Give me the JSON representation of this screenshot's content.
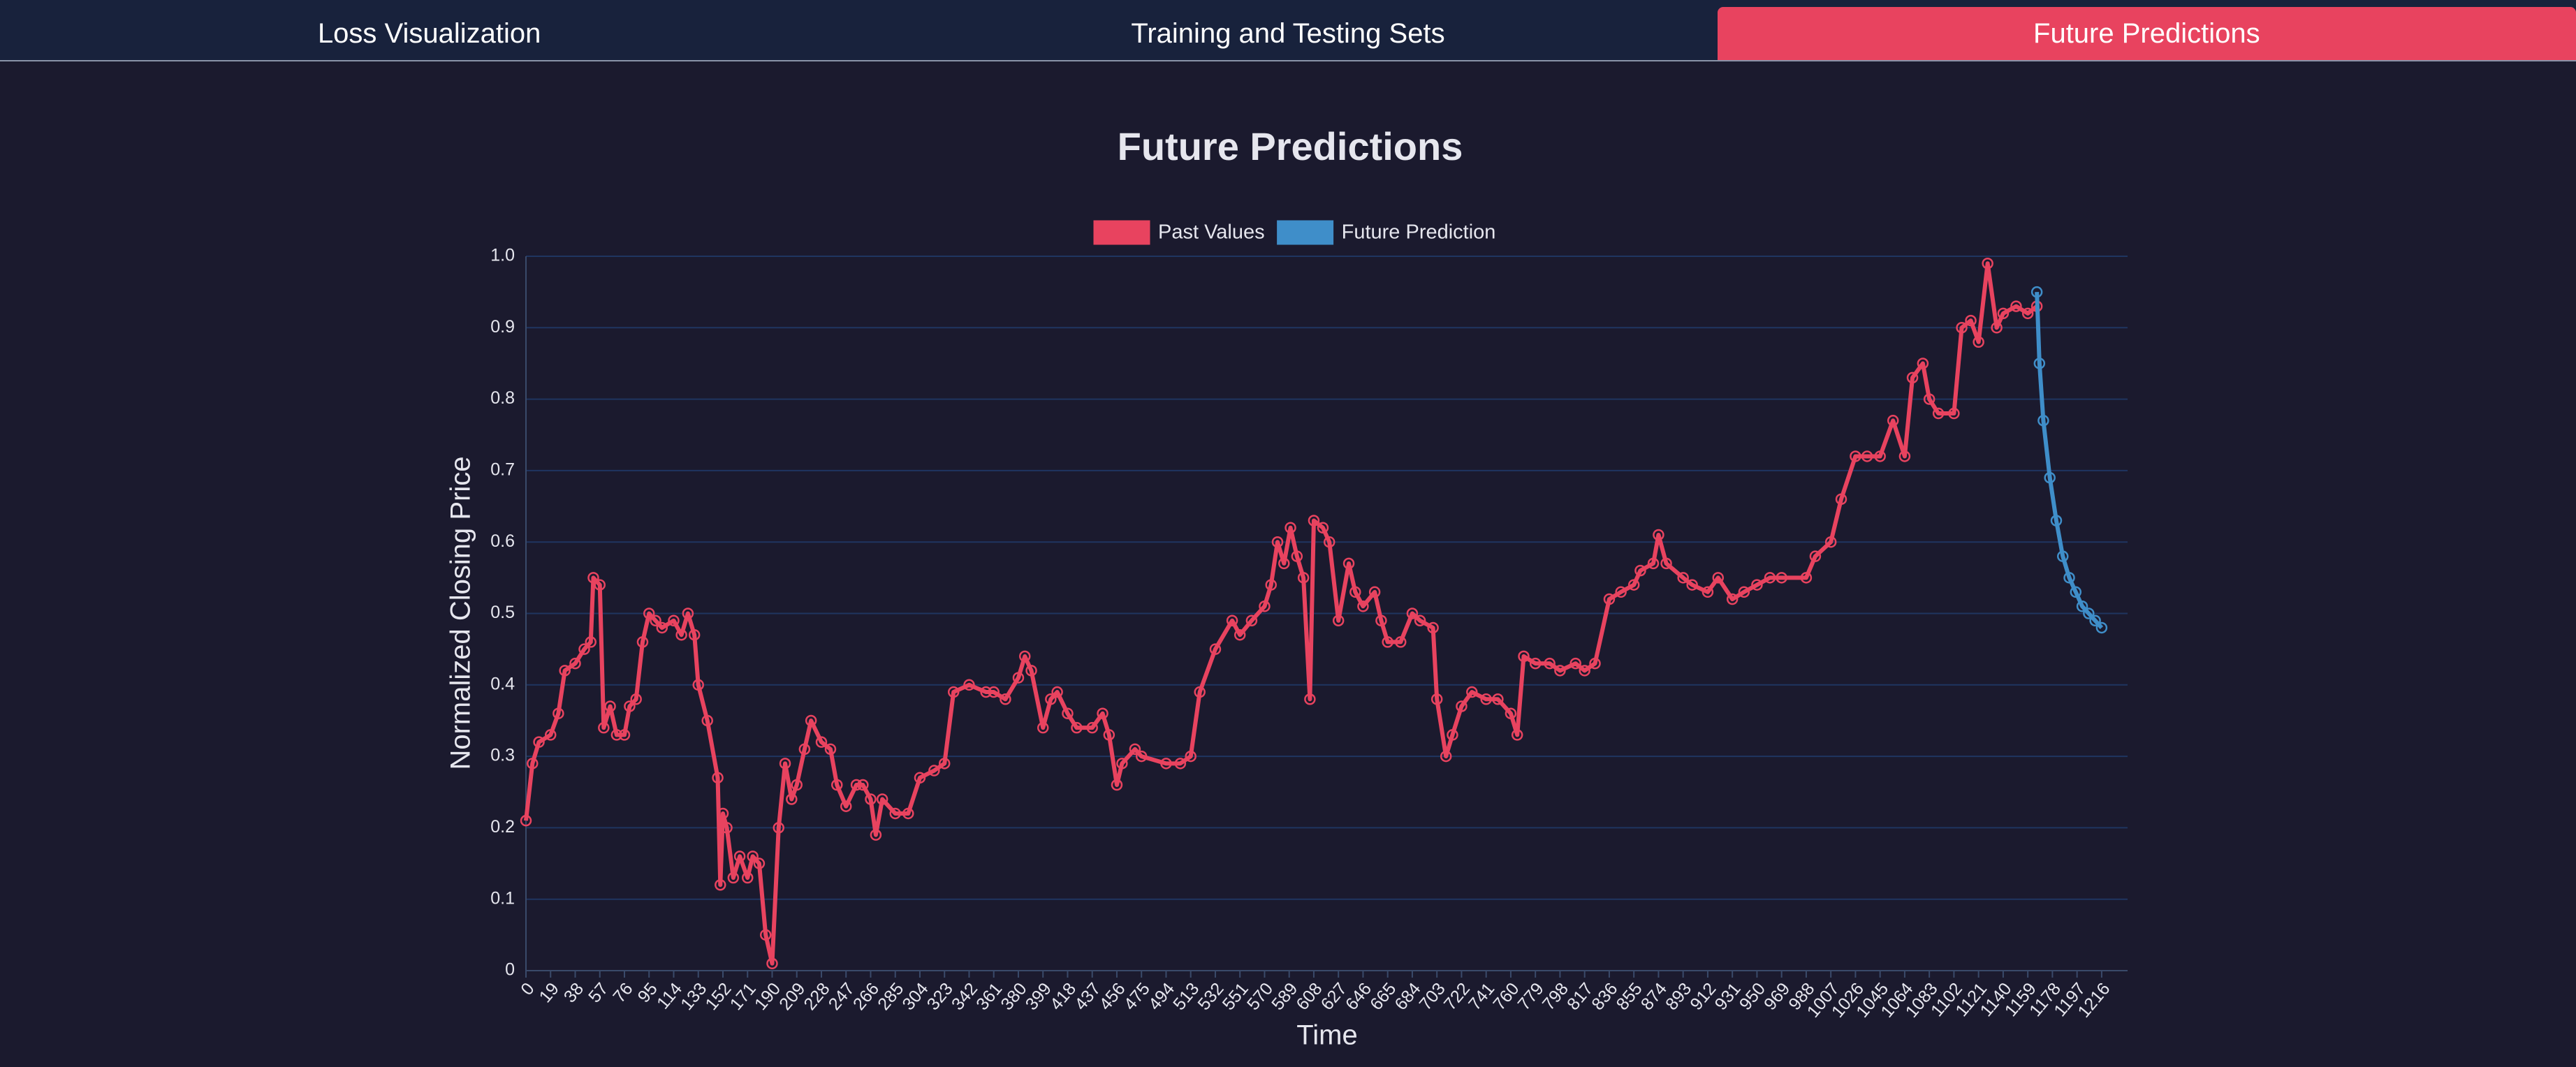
{
  "tabs": [
    "Loss Visualization",
    "Training and Testing Sets",
    "Future Predictions"
  ],
  "chart_data": {
    "type": "line",
    "title": "Future Predictions",
    "x_label": "Time",
    "y_label": "Normalized Closing Price",
    "legend": "top",
    "grid": true,
    "xlim": [
      0,
      1236
    ],
    "ylim": [
      0,
      1
    ],
    "xticks": [
      0,
      19,
      38,
      57,
      76,
      95,
      114,
      133,
      152,
      171,
      190,
      209,
      228,
      247,
      266,
      285,
      304,
      323,
      342,
      361,
      380,
      399,
      418,
      437,
      456,
      475,
      494,
      513,
      532,
      551,
      570,
      589,
      608,
      627,
      646,
      665,
      684,
      703,
      722,
      741,
      760,
      779,
      798,
      817,
      836,
      855,
      874,
      893,
      912,
      931,
      950,
      969,
      988,
      1007,
      1026,
      1045,
      1064,
      1083,
      1102,
      1121,
      1140,
      1159,
      1178,
      1197,
      1216
    ],
    "yticks": [
      0,
      0.1,
      0.2,
      0.3,
      0.4,
      0.5,
      0.6,
      0.7,
      0.8,
      0.9,
      {
        "value": 1,
        "label": "1.0"
      }
    ],
    "series": [
      {
        "name": "Past Values",
        "color": "#e8435f",
        "x": [
          0,
          5,
          10,
          19,
          25,
          30,
          38,
          45,
          50,
          52,
          57,
          60,
          65,
          70,
          76,
          80,
          85,
          90,
          95,
          100,
          105,
          114,
          120,
          125,
          130,
          133,
          140,
          148,
          150,
          152,
          155,
          160,
          165,
          171,
          175,
          180,
          185,
          190,
          195,
          200,
          205,
          209,
          215,
          220,
          228,
          235,
          240,
          247,
          255,
          260,
          266,
          270,
          275,
          285,
          295,
          304,
          315,
          323,
          330,
          342,
          355,
          361,
          370,
          380,
          385,
          390,
          399,
          405,
          410,
          418,
          425,
          437,
          445,
          450,
          456,
          460,
          470,
          475,
          494,
          505,
          513,
          520,
          532,
          545,
          551,
          560,
          570,
          575,
          580,
          585,
          590,
          595,
          600,
          605,
          608,
          615,
          620,
          627,
          635,
          640,
          646,
          655,
          660,
          665,
          675,
          684,
          690,
          700,
          703,
          710,
          715,
          722,
          730,
          741,
          750,
          760,
          765,
          770,
          779,
          790,
          798,
          810,
          817,
          825,
          836,
          845,
          855,
          860,
          870,
          874,
          880,
          893,
          900,
          912,
          920,
          931,
          940,
          950,
          960,
          969,
          988,
          995,
          1007,
          1015,
          1026,
          1035,
          1045,
          1055,
          1064,
          1070,
          1078,
          1083,
          1090,
          1102,
          1108,
          1115,
          1121,
          1128,
          1135,
          1140,
          1150,
          1159,
          1166
        ],
        "values": [
          0.21,
          0.29,
          0.32,
          0.33,
          0.36,
          0.42,
          0.43,
          0.45,
          0.46,
          0.55,
          0.54,
          0.34,
          0.37,
          0.33,
          0.33,
          0.37,
          0.38,
          0.46,
          0.5,
          0.49,
          0.48,
          0.49,
          0.47,
          0.5,
          0.47,
          0.4,
          0.35,
          0.27,
          0.12,
          0.22,
          0.2,
          0.13,
          0.16,
          0.13,
          0.16,
          0.15,
          0.05,
          0.01,
          0.2,
          0.29,
          0.24,
          0.26,
          0.31,
          0.35,
          0.32,
          0.31,
          0.26,
          0.23,
          0.26,
          0.26,
          0.24,
          0.19,
          0.24,
          0.22,
          0.22,
          0.27,
          0.28,
          0.29,
          0.39,
          0.4,
          0.39,
          0.39,
          0.38,
          0.41,
          0.44,
          0.42,
          0.34,
          0.38,
          0.39,
          0.36,
          0.34,
          0.34,
          0.36,
          0.33,
          0.26,
          0.29,
          0.31,
          0.3,
          0.29,
          0.29,
          0.3,
          0.39,
          0.45,
          0.49,
          0.47,
          0.49,
          0.51,
          0.54,
          0.6,
          0.57,
          0.62,
          0.58,
          0.55,
          0.38,
          0.63,
          0.62,
          0.6,
          0.49,
          0.57,
          0.53,
          0.51,
          0.53,
          0.49,
          0.46,
          0.46,
          0.5,
          0.49,
          0.48,
          0.38,
          0.3,
          0.33,
          0.37,
          0.39,
          0.38,
          0.38,
          0.36,
          0.33,
          0.44,
          0.43,
          0.43,
          0.42,
          0.43,
          0.42,
          0.43,
          0.52,
          0.53,
          0.54,
          0.56,
          0.57,
          0.61,
          0.57,
          0.55,
          0.54,
          0.53,
          0.55,
          0.52,
          0.53,
          0.54,
          0.55,
          0.55,
          0.55,
          0.58,
          0.6,
          0.66,
          0.72,
          0.72,
          0.72,
          0.77,
          0.72,
          0.83,
          0.85,
          0.8,
          0.78,
          0.78,
          0.9,
          0.91,
          0.88,
          0.99,
          0.9,
          0.92,
          0.93,
          0.92,
          0.93
        ]
      },
      {
        "name": "Future Prediction",
        "color": "#3f8ec9",
        "x": [
          1166,
          1168,
          1171,
          1176,
          1181,
          1186,
          1191,
          1196,
          1201,
          1206,
          1211,
          1216
        ],
        "values": [
          0.95,
          0.85,
          0.77,
          0.69,
          0.63,
          0.58,
          0.55,
          0.53,
          0.51,
          0.5,
          0.49,
          0.48
        ]
      }
    ]
  }
}
